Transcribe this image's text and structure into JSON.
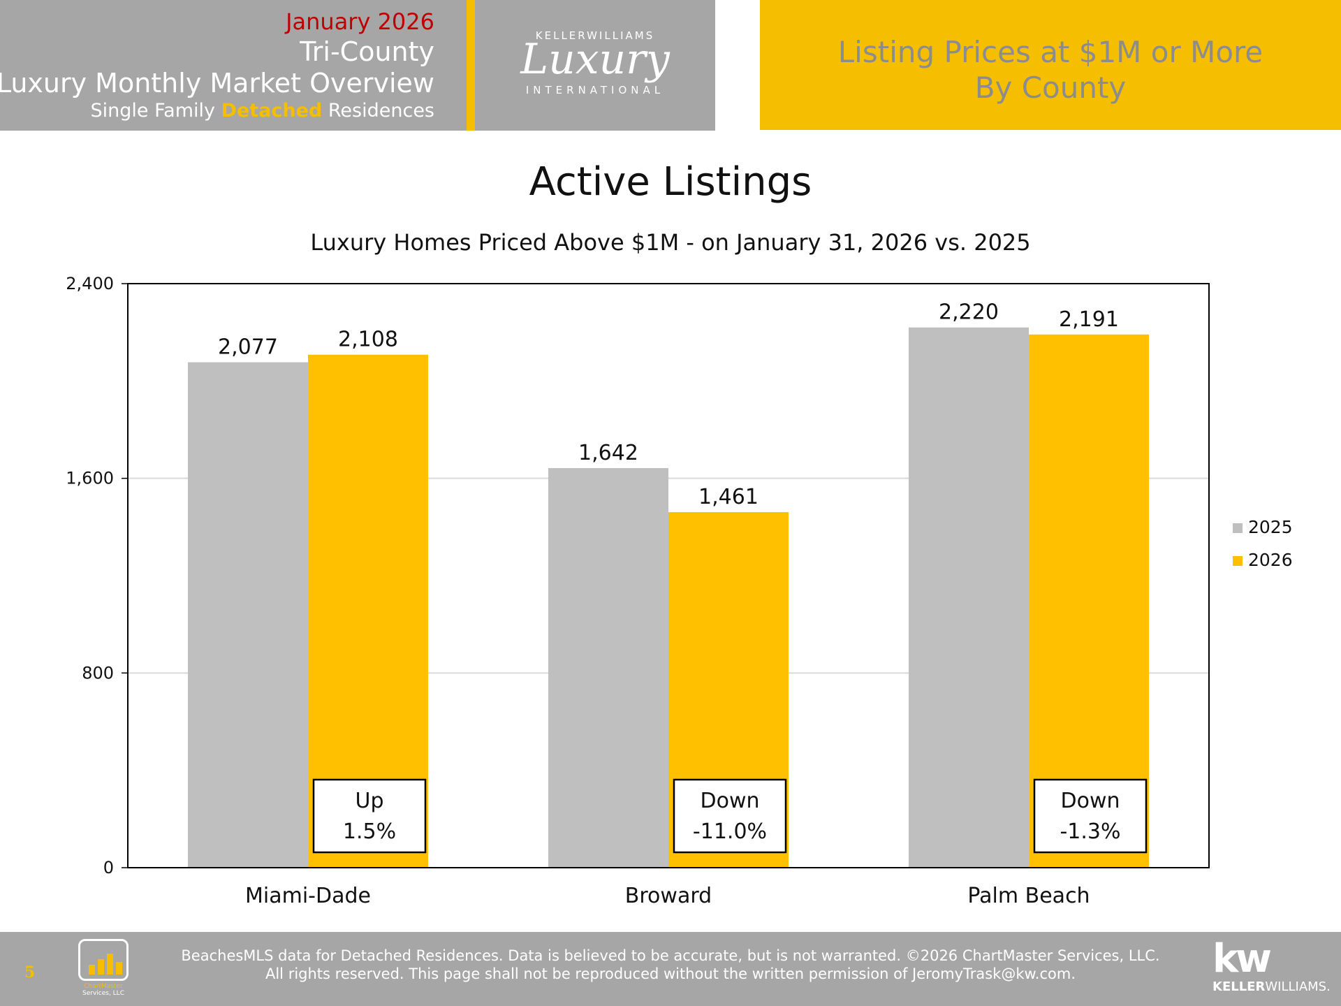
{
  "header": {
    "month": "January 2026",
    "region": "Tri-County",
    "report_title": "Luxury Monthly Market Overview",
    "subtitle_pre": "Single Family ",
    "subtitle_accent": "Detached",
    "subtitle_post": " Residences",
    "logo_top": "KELLERWILLIAMS",
    "logo_script": "Luxury",
    "logo_bottom": "INTERNATIONAL",
    "right_line1": "Listing Prices at $1M or More",
    "right_line2": "By County"
  },
  "chart_data": {
    "type": "bar",
    "title": "Active Listings",
    "subtitle": "Luxury Homes Priced Above $1M - on January 31,  2026 vs. 2025",
    "categories": [
      "Miami-Dade",
      "Broward",
      "Palm Beach"
    ],
    "series": [
      {
        "name": "2025",
        "values": [
          2077,
          1642,
          2220
        ],
        "labels": [
          "2,077",
          "1,642",
          "2,220"
        ],
        "color": "#bfbfbf"
      },
      {
        "name": "2026",
        "values": [
          2108,
          1461,
          2191
        ],
        "labels": [
          "2,108",
          "1,461",
          "2,191"
        ],
        "color": "#ffc000"
      }
    ],
    "ylim": [
      0,
      2400
    ],
    "yticks": [
      0,
      800,
      1600,
      2400
    ],
    "ytick_labels": [
      "0",
      "800",
      "1,600",
      "2,400"
    ],
    "grid": true,
    "legend_position": "right",
    "annotations": [
      {
        "category": "Miami-Dade",
        "line1": "Up",
        "line2": "1.5%"
      },
      {
        "category": "Broward",
        "line1": "Down",
        "line2": "-11.0%"
      },
      {
        "category": "Palm Beach",
        "line1": "Down",
        "line2": "-1.3%"
      }
    ]
  },
  "footer": {
    "page_number": "5",
    "chartmaster_line1": "ChartMaster",
    "chartmaster_line2": "Services, LLC",
    "line1": "BeachesMLS data for Detached Residences.  Data is believed to be accurate, but is not warranted.   ©2026  ChartMaster Services, LLC.",
    "line2": "All rights reserved. This page shall not be reproduced without the written permission of JeromyTrask@kw.com.",
    "kw_mark": "kw",
    "kw_name_bold": "KELLER",
    "kw_name_rest": "WILLIAMS."
  }
}
